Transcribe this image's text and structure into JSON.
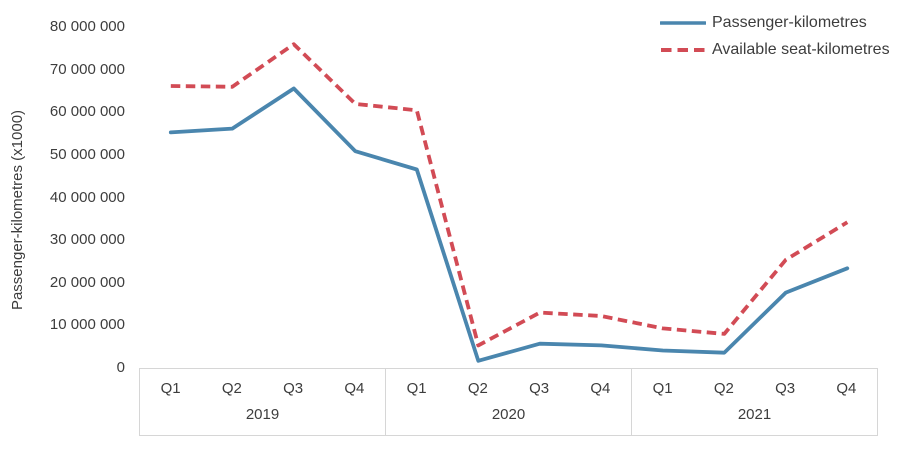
{
  "colors": {
    "passenger_line": "#4A86AE",
    "seat_line": "#D24B55",
    "axis_text": "#3d3d3d",
    "axis_border": "#d6d6d6",
    "background": "#ffffff"
  },
  "chart_data": {
    "type": "line",
    "title": "",
    "xlabel": "",
    "ylabel": "Passenger-kilometres (x1000)",
    "grid": false,
    "legend_position": "top-right",
    "ylim": [
      0,
      80000000
    ],
    "y_ticks": [
      {
        "value": 0,
        "label": "0"
      },
      {
        "value": 10000000,
        "label": "10 000 000"
      },
      {
        "value": 20000000,
        "label": "20 000 000"
      },
      {
        "value": 30000000,
        "label": "30 000 000"
      },
      {
        "value": 40000000,
        "label": "40 000 000"
      },
      {
        "value": 50000000,
        "label": "50 000 000"
      },
      {
        "value": 60000000,
        "label": "60 000 000"
      },
      {
        "value": 70000000,
        "label": "70 000 000"
      },
      {
        "value": 80000000,
        "label": "80 000 000"
      }
    ],
    "x_groups": [
      {
        "year": "2019",
        "quarters": [
          "Q1",
          "Q2",
          "Q3",
          "Q4"
        ]
      },
      {
        "year": "2020",
        "quarters": [
          "Q1",
          "Q2",
          "Q3",
          "Q4"
        ]
      },
      {
        "year": "2021",
        "quarters": [
          "Q1",
          "Q2",
          "Q3",
          "Q4"
        ]
      }
    ],
    "categories": [
      "2019 Q1",
      "2019 Q2",
      "2019 Q3",
      "2019 Q4",
      "2020 Q1",
      "2020 Q2",
      "2020 Q3",
      "2020 Q4",
      "2021 Q1",
      "2021 Q2",
      "2021 Q3",
      "2021 Q4"
    ],
    "series": [
      {
        "name": "Passenger-kilometres",
        "style": "solid",
        "color": "#4A86AE",
        "values": [
          55300000,
          56200000,
          65600000,
          50900000,
          46600000,
          1700000,
          5700000,
          5300000,
          4100000,
          3600000,
          17700000,
          23400000
        ]
      },
      {
        "name": "Available seat-kilometres",
        "style": "dashed",
        "color": "#D24B55",
        "values": [
          66200000,
          66000000,
          76000000,
          62000000,
          60500000,
          5300000,
          13000000,
          12200000,
          9300000,
          8000000,
          25400000,
          34200000
        ]
      }
    ]
  }
}
